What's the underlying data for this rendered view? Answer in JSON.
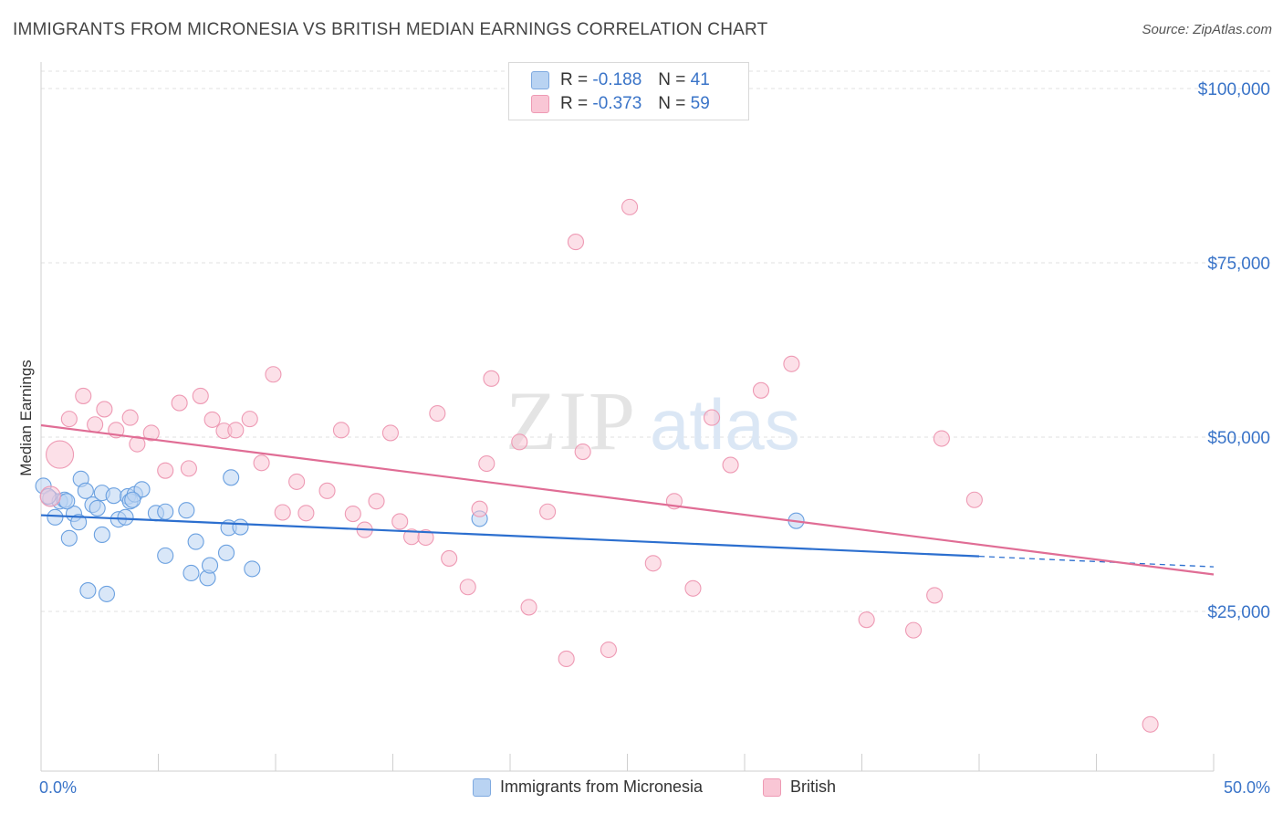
{
  "title": "IMMIGRANTS FROM MICRONESIA VS BRITISH MEDIAN EARNINGS CORRELATION CHART",
  "source": "Source: ZipAtlas.com",
  "watermark": {
    "zip": "ZIP",
    "atlas": "atlas"
  },
  "legend_top": [
    {
      "r_label": "R =",
      "r_value": "-0.188",
      "n_label": "N =",
      "n_value": "41",
      "fill": "#b9d3f2",
      "stroke": "#7ea9e0"
    },
    {
      "r_label": "R =",
      "r_value": "-0.373",
      "n_label": "N =",
      "n_value": "59",
      "fill": "#f9c6d5",
      "stroke": "#ee9ab4"
    }
  ],
  "chart_data": {
    "type": "scatter",
    "title": "IMMIGRANTS FROM MICRONESIA VS BRITISH MEDIAN EARNINGS CORRELATION CHART",
    "xlabel": "",
    "ylabel": "Median Earnings",
    "xlim": [
      0,
      50
    ],
    "ylim": [
      5000,
      105000
    ],
    "x_tick_labels": [
      "0.0%",
      "50.0%"
    ],
    "y_ticks": [
      25000,
      50000,
      75000,
      100000
    ],
    "y_tick_labels": [
      "$25,000",
      "$50,000",
      "$75,000",
      "$100,000"
    ],
    "grid": true,
    "series": [
      {
        "name": "Immigrants from Micronesia",
        "color": "#6aa0e0",
        "fill": "#b9d3f2",
        "line_color": "#2c6fcf",
        "points": [
          [
            0.1,
            43000
          ],
          [
            0.4,
            41200
          ],
          [
            0.6,
            38500
          ],
          [
            0.8,
            40800
          ],
          [
            1.0,
            41000
          ],
          [
            1.2,
            35500
          ],
          [
            1.4,
            39000
          ],
          [
            1.6,
            37800
          ],
          [
            1.7,
            44000
          ],
          [
            1.9,
            42300
          ],
          [
            2.0,
            28000
          ],
          [
            2.2,
            40300
          ],
          [
            2.4,
            39800
          ],
          [
            2.6,
            42000
          ],
          [
            2.6,
            36000
          ],
          [
            2.8,
            27500
          ],
          [
            3.1,
            41600
          ],
          [
            3.3,
            38200
          ],
          [
            3.6,
            38500
          ],
          [
            3.7,
            41500
          ],
          [
            3.8,
            40800
          ],
          [
            4.0,
            41800
          ],
          [
            4.3,
            42500
          ],
          [
            4.9,
            39100
          ],
          [
            5.3,
            39300
          ],
          [
            5.3,
            33000
          ],
          [
            6.2,
            39500
          ],
          [
            6.4,
            30500
          ],
          [
            6.6,
            35000
          ],
          [
            7.1,
            29800
          ],
          [
            7.2,
            31600
          ],
          [
            7.9,
            33400
          ],
          [
            8.0,
            37000
          ],
          [
            8.1,
            44200
          ],
          [
            8.5,
            37100
          ],
          [
            9.0,
            31100
          ],
          [
            18.7,
            38300
          ],
          [
            32.2,
            38000
          ],
          [
            0.3,
            41500
          ],
          [
            3.9,
            41000
          ],
          [
            1.1,
            40800
          ]
        ],
        "trend": {
          "x0": 0,
          "y0": 38800,
          "x1": 40,
          "y1": 32900,
          "dash_to": 50,
          "dash_y": 31400
        }
      },
      {
        "name": "British",
        "color": "#ee9ab4",
        "fill": "#f9c6d5",
        "line_color": "#e06d95",
        "points": [
          [
            0.4,
            41500
          ],
          [
            0.8,
            47500
          ],
          [
            1.2,
            52600
          ],
          [
            1.8,
            55900
          ],
          [
            2.3,
            51800
          ],
          [
            2.7,
            54000
          ],
          [
            3.2,
            51000
          ],
          [
            3.8,
            52800
          ],
          [
            4.1,
            49000
          ],
          [
            4.7,
            50600
          ],
          [
            5.3,
            45200
          ],
          [
            5.9,
            54900
          ],
          [
            6.3,
            45500
          ],
          [
            6.8,
            55900
          ],
          [
            7.3,
            52500
          ],
          [
            7.8,
            50900
          ],
          [
            8.3,
            51000
          ],
          [
            8.9,
            52600
          ],
          [
            9.4,
            46300
          ],
          [
            9.9,
            59000
          ],
          [
            10.3,
            39200
          ],
          [
            10.9,
            43600
          ],
          [
            11.3,
            39100
          ],
          [
            12.2,
            42300
          ],
          [
            12.8,
            51000
          ],
          [
            13.3,
            39000
          ],
          [
            13.8,
            36700
          ],
          [
            14.3,
            40800
          ],
          [
            14.9,
            50600
          ],
          [
            15.3,
            37900
          ],
          [
            15.8,
            35700
          ],
          [
            16.4,
            35600
          ],
          [
            16.9,
            53400
          ],
          [
            17.4,
            32600
          ],
          [
            18.2,
            28500
          ],
          [
            18.7,
            39700
          ],
          [
            19.0,
            46200
          ],
          [
            19.2,
            58400
          ],
          [
            20.4,
            49300
          ],
          [
            20.8,
            25600
          ],
          [
            21.6,
            39300
          ],
          [
            22.4,
            18200
          ],
          [
            22.8,
            78000
          ],
          [
            23.1,
            47900
          ],
          [
            24.2,
            19500
          ],
          [
            25.1,
            83000
          ],
          [
            26.1,
            31900
          ],
          [
            27.0,
            40800
          ],
          [
            27.8,
            28300
          ],
          [
            28.6,
            52800
          ],
          [
            29.4,
            46000
          ],
          [
            30.7,
            56700
          ],
          [
            32.0,
            60500
          ],
          [
            35.2,
            23800
          ],
          [
            37.2,
            22300
          ],
          [
            38.1,
            27300
          ],
          [
            38.4,
            49800
          ],
          [
            39.8,
            41000
          ],
          [
            47.3,
            8800
          ]
        ],
        "trend": {
          "x0": 0,
          "y0": 51700,
          "x1": 50,
          "y1": 30300
        }
      }
    ]
  },
  "bottom_legend": [
    {
      "label": "Immigrants from Micronesia",
      "fill": "#b9d3f2",
      "stroke": "#7ea9e0"
    },
    {
      "label": "British",
      "fill": "#f9c6d5",
      "stroke": "#ee9ab4"
    }
  ]
}
